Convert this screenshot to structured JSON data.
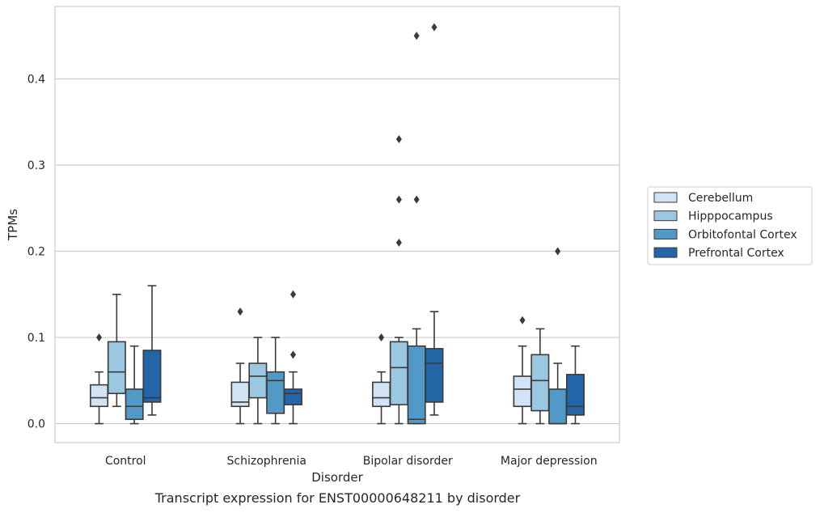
{
  "caption": "Transcript expression for ENST00000648211 by disorder",
  "chart_data": {
    "type": "box",
    "title": "",
    "xlabel": "Disorder",
    "ylabel": "TPMs",
    "ylim": [
      -0.022,
      0.484
    ],
    "yticks": [
      0.0,
      0.1,
      0.2,
      0.3,
      0.4
    ],
    "ytick_labels": [
      "0.0",
      "0.1",
      "0.2",
      "0.3",
      "0.4"
    ],
    "grid": "horizontal",
    "legend_position": "right",
    "categories": [
      "Control",
      "Schizophrenia",
      "Bipolar disorder",
      "Major depression"
    ],
    "series": [
      {
        "name": "Cerebellum",
        "color": "#d2e3f3",
        "boxes": [
          {
            "min": 0.0,
            "q1": 0.02,
            "median": 0.03,
            "q3": 0.045,
            "max": 0.06,
            "outliers": [
              0.1
            ]
          },
          {
            "min": 0.0,
            "q1": 0.02,
            "median": 0.025,
            "q3": 0.048,
            "max": 0.07,
            "outliers": [
              0.13
            ]
          },
          {
            "min": 0.0,
            "q1": 0.02,
            "median": 0.03,
            "q3": 0.048,
            "max": 0.06,
            "outliers": [
              0.1
            ]
          },
          {
            "min": 0.0,
            "q1": 0.02,
            "median": 0.04,
            "q3": 0.055,
            "max": 0.09,
            "outliers": [
              0.12
            ]
          }
        ]
      },
      {
        "name": "Hipppocampus",
        "color": "#9ac8e0",
        "boxes": [
          {
            "min": 0.02,
            "q1": 0.035,
            "median": 0.06,
            "q3": 0.095,
            "max": 0.15,
            "outliers": []
          },
          {
            "min": 0.0,
            "q1": 0.03,
            "median": 0.055,
            "q3": 0.07,
            "max": 0.1,
            "outliers": []
          },
          {
            "min": 0.0,
            "q1": 0.022,
            "median": 0.065,
            "q3": 0.095,
            "max": 0.1,
            "outliers": [
              0.21,
              0.26,
              0.33
            ]
          },
          {
            "min": 0.0,
            "q1": 0.015,
            "median": 0.05,
            "q3": 0.08,
            "max": 0.11,
            "outliers": []
          }
        ]
      },
      {
        "name": "Orbitofontal Cortex",
        "color": "#5199c7",
        "boxes": [
          {
            "min": 0.0,
            "q1": 0.005,
            "median": 0.02,
            "q3": 0.04,
            "max": 0.09,
            "outliers": []
          },
          {
            "min": 0.0,
            "q1": 0.012,
            "median": 0.05,
            "q3": 0.06,
            "max": 0.1,
            "outliers": []
          },
          {
            "min": 0.0,
            "q1": 0.0,
            "median": 0.005,
            "q3": 0.09,
            "max": 0.11,
            "outliers": [
              0.26,
              0.45
            ]
          },
          {
            "min": 0.0,
            "q1": 0.0,
            "median": 0.0,
            "q3": 0.04,
            "max": 0.07,
            "outliers": [
              0.2
            ]
          }
        ]
      },
      {
        "name": "Prefrontal Cortex",
        "color": "#2366a8",
        "boxes": [
          {
            "min": 0.01,
            "q1": 0.025,
            "median": 0.03,
            "q3": 0.085,
            "max": 0.16,
            "outliers": []
          },
          {
            "min": 0.0,
            "q1": 0.022,
            "median": 0.035,
            "q3": 0.04,
            "max": 0.06,
            "outliers": [
              0.08,
              0.15
            ]
          },
          {
            "min": 0.01,
            "q1": 0.025,
            "median": 0.07,
            "q3": 0.087,
            "max": 0.13,
            "outliers": [
              0.46
            ]
          },
          {
            "min": 0.0,
            "q1": 0.01,
            "median": 0.02,
            "q3": 0.057,
            "max": 0.09,
            "outliers": []
          }
        ]
      }
    ]
  }
}
